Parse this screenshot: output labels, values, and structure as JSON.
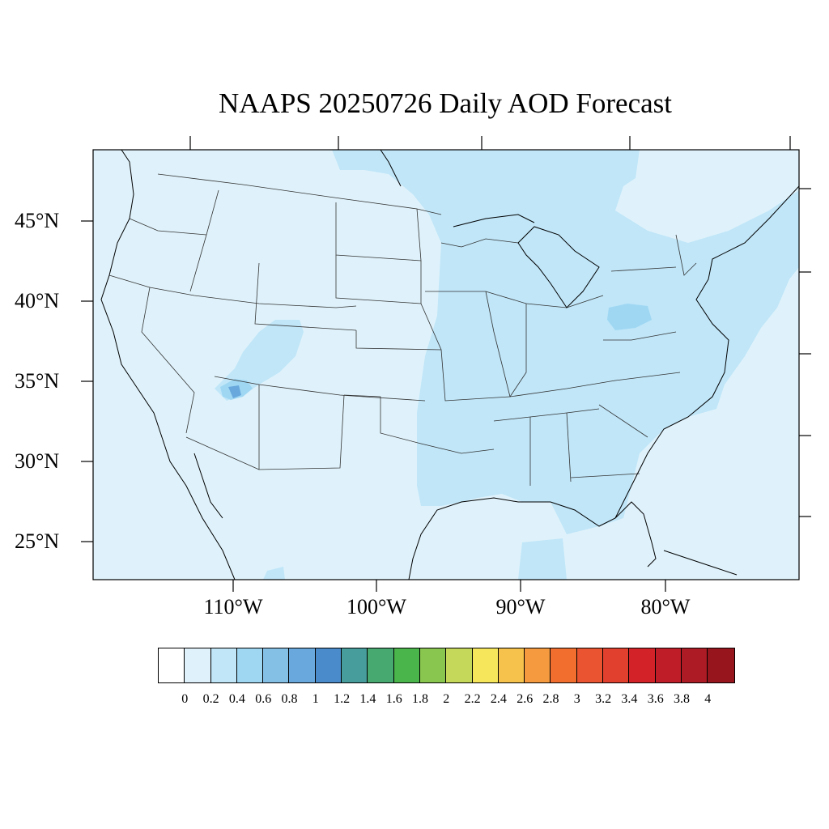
{
  "title": "NAAPS 20250726 Daily AOD Forecast",
  "map": {
    "lat_ticks": [
      "45°N",
      "40°N",
      "35°N",
      "30°N",
      "25°N"
    ],
    "lon_ticks": [
      "110°W",
      "100°W",
      "90°W",
      "80°W"
    ],
    "background_color": "#dff2fb"
  },
  "colorbar": {
    "colors": [
      "#ffffff",
      "#dff2fb",
      "#c0e6f8",
      "#9fd7f3",
      "#84c0e6",
      "#68a8dc",
      "#4a8ccb",
      "#479d9c",
      "#47a870",
      "#4ab54a",
      "#88c64f",
      "#c6d85a",
      "#f5e65b",
      "#f6c24b",
      "#f59a3f",
      "#f26e2f",
      "#eb5430",
      "#e0402d",
      "#d32328",
      "#bf1d27",
      "#ad1c24",
      "#97161d"
    ],
    "labels": [
      "0",
      "0.2",
      "0.4",
      "0.6",
      "0.8",
      "1",
      "1.2",
      "1.4",
      "1.6",
      "1.8",
      "2",
      "2.2",
      "2.4",
      "2.6",
      "2.8",
      "3",
      "3.2",
      "3.4",
      "3.6",
      "3.8",
      "4"
    ]
  }
}
